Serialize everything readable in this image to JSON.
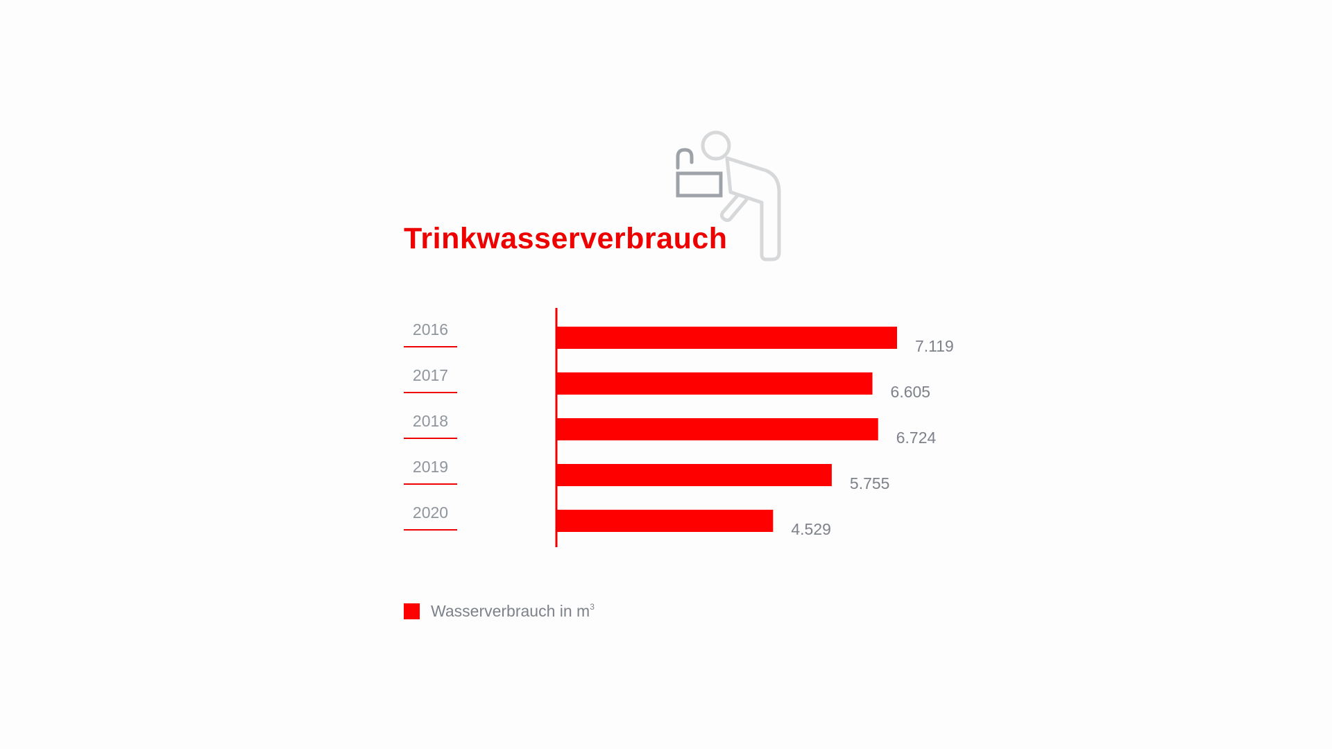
{
  "colors": {
    "accent": "#ee0000",
    "bar": "#fe0000",
    "text_gray": "#7d8189",
    "icon_gray": "#9ea3a9",
    "icon_light": "#d6d8da"
  },
  "icon": {
    "name": "person-at-washbasin-icon"
  },
  "chart_data": {
    "type": "bar",
    "orientation": "horizontal",
    "title": "Trinkwasserverbrauch",
    "categories": [
      "2016",
      "2017",
      "2018",
      "2019",
      "2020"
    ],
    "series": [
      {
        "name": "Wasserverbrauch in m³",
        "values": [
          7119,
          6605,
          6724,
          5755,
          4529
        ],
        "value_labels": [
          "7.119",
          "6.605",
          "6.724",
          "5.755",
          "4.529"
        ]
      }
    ],
    "xlim": [
      0,
      7119
    ],
    "grid": false,
    "legend_position": "bottom-left"
  },
  "legend": {
    "label_main": "Wasserverbrauch in m",
    "label_sup": "3"
  }
}
